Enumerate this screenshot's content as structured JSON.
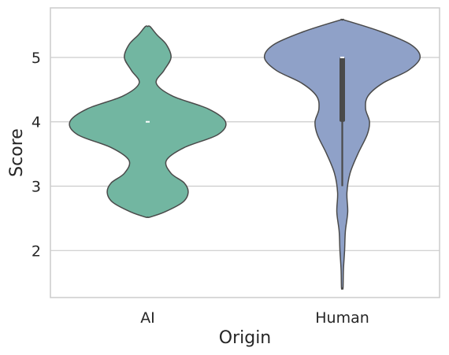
{
  "chart_data": {
    "type": "violin",
    "title": "",
    "xlabel": "Origin",
    "ylabel": "Score",
    "categories": [
      "AI",
      "Human"
    ],
    "ylim": [
      1.27,
      5.77
    ],
    "yticks": [
      2,
      3,
      4,
      5
    ],
    "grid": "horizontal",
    "series": [
      {
        "category": "AI",
        "color": "#72b6a1",
        "range": [
          2.52,
          5.48
        ],
        "median": 4.0,
        "q1": 4.0,
        "q3": 4.0,
        "whisker": [
          4.0,
          4.0
        ],
        "density": [
          [
            2.52,
            0.03
          ],
          [
            2.6,
            0.22
          ],
          [
            2.75,
            0.45
          ],
          [
            2.9,
            0.52
          ],
          [
            3.05,
            0.47
          ],
          [
            3.2,
            0.3
          ],
          [
            3.4,
            0.24
          ],
          [
            3.6,
            0.47
          ],
          [
            3.8,
            0.9
          ],
          [
            4.0,
            1.0
          ],
          [
            4.2,
            0.78
          ],
          [
            4.4,
            0.32
          ],
          [
            4.6,
            0.11
          ],
          [
            4.8,
            0.21
          ],
          [
            5.0,
            0.3
          ],
          [
            5.2,
            0.24
          ],
          [
            5.35,
            0.12
          ],
          [
            5.48,
            0.03
          ]
        ]
      },
      {
        "category": "Human",
        "color": "#8fa1c8",
        "range": [
          1.42,
          5.58
        ],
        "median": 5.0,
        "q1": 4.0,
        "q3": 5.0,
        "whisker": [
          3.0,
          5.0
        ],
        "density": [
          [
            1.42,
            0.01
          ],
          [
            1.7,
            0.015
          ],
          [
            2.0,
            0.03
          ],
          [
            2.3,
            0.04
          ],
          [
            2.6,
            0.07
          ],
          [
            2.9,
            0.06
          ],
          [
            3.2,
            0.1
          ],
          [
            3.5,
            0.2
          ],
          [
            3.8,
            0.32
          ],
          [
            4.0,
            0.35
          ],
          [
            4.2,
            0.3
          ],
          [
            4.4,
            0.33
          ],
          [
            4.6,
            0.52
          ],
          [
            4.8,
            0.85
          ],
          [
            5.0,
            1.0
          ],
          [
            5.2,
            0.88
          ],
          [
            5.4,
            0.5
          ],
          [
            5.58,
            0.03
          ]
        ]
      }
    ]
  }
}
